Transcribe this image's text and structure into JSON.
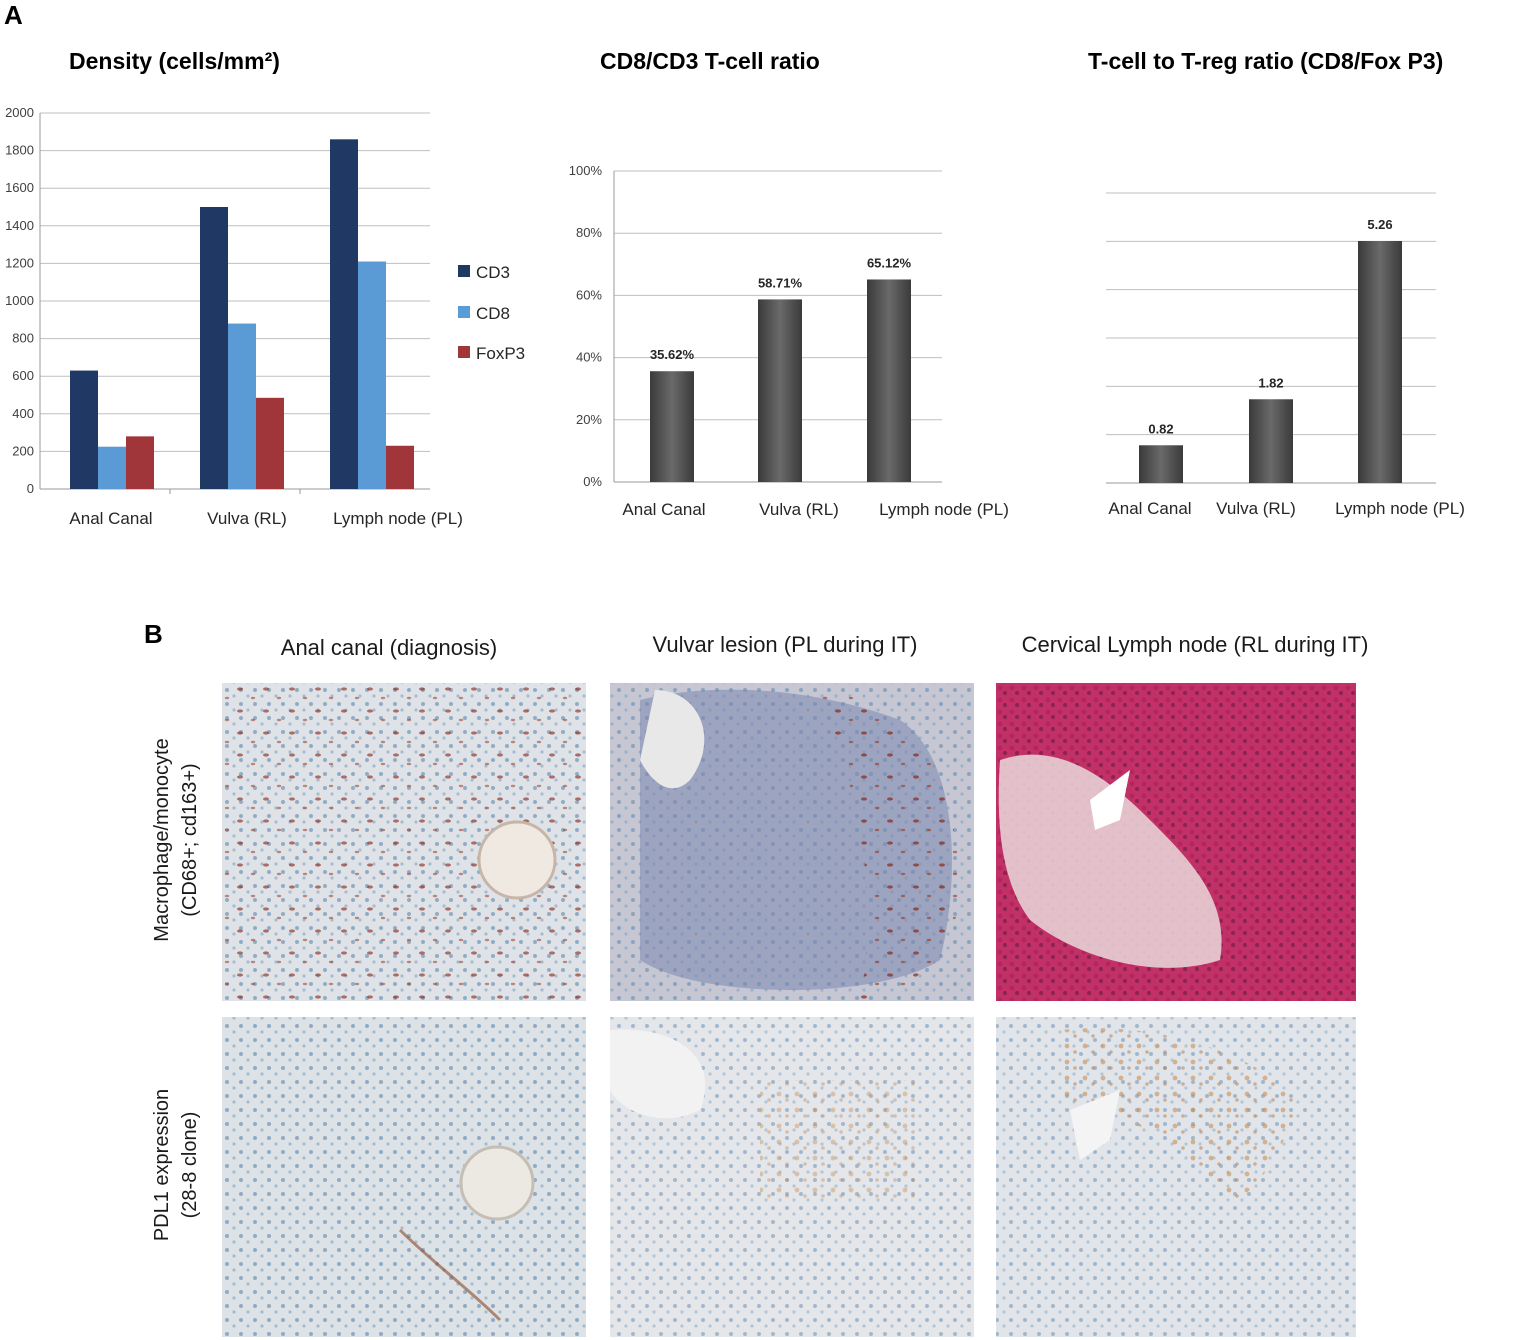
{
  "panel_a_label": "A",
  "panel_b_label": "B",
  "colors": {
    "CD3": "#1f3864",
    "CD8": "#5b9bd5",
    "FoxP3": "#a0363a",
    "gray_bar": "#4d4d4d",
    "grid": "#bfbfbf"
  },
  "chart_data": [
    {
      "type": "bar",
      "title": "Density (cells/mm²)",
      "categories": [
        "Anal Canal",
        "Vulva (RL)",
        "Lymph node (PL)"
      ],
      "series": [
        {
          "name": "CD3",
          "values": [
            630,
            1500,
            1860
          ]
        },
        {
          "name": "CD8",
          "values": [
            225,
            880,
            1210
          ]
        },
        {
          "name": "FoxP3",
          "values": [
            280,
            485,
            230
          ]
        }
      ],
      "ylim": [
        0,
        2000
      ],
      "yticks": [
        "0",
        "200",
        "400",
        "600",
        "800",
        "1000",
        "1200",
        "1400",
        "1600",
        "1800",
        "2000"
      ],
      "grid": true,
      "legend": "right"
    },
    {
      "type": "bar",
      "title": "CD8/CD3  T-cell ratio",
      "categories": [
        "Anal Canal",
        "Vulva (RL)",
        "Lymph node (PL)"
      ],
      "values": [
        35.62,
        58.71,
        65.12
      ],
      "data_labels": [
        "35.62%",
        "58.71%",
        "65.12%"
      ],
      "ylim": [
        0,
        100
      ],
      "yticks": [
        "0%",
        "20%",
        "40%",
        "60%",
        "80%",
        "100%"
      ],
      "grid": true
    },
    {
      "type": "bar",
      "title": "T-cell to T-reg ratio (CD8/Fox P3)",
      "categories": [
        "Anal Canal",
        "Vulva (RL)",
        "Lymph node (PL)"
      ],
      "values": [
        0.82,
        1.82,
        5.26
      ],
      "data_labels": [
        "0.82",
        "1.82",
        "5.26"
      ],
      "ylim": [
        0,
        6.5
      ],
      "grid": true
    }
  ],
  "panel_b": {
    "columns": [
      "Anal canal (diagnosis)",
      "Vulvar lesion (PL during IT)",
      "Cervical Lymph node (RL during IT)"
    ],
    "rows": [
      {
        "line1": "Macrophage/monocyte",
        "line2": "(CD68+; cd163+)"
      },
      {
        "line1": "PDL1 expression",
        "line2": "(28-8 clone)"
      }
    ]
  }
}
